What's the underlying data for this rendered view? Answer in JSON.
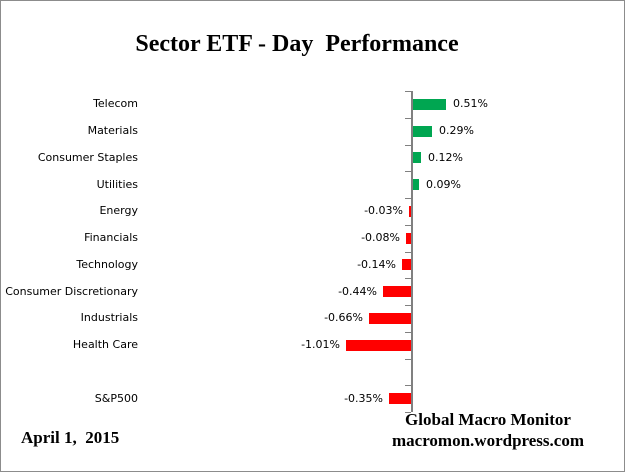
{
  "frame": {
    "background": "#FFFFFF",
    "border_color": "#8C8C8C"
  },
  "title": "Sector ETF - Day  Performance",
  "footer": {
    "date": "April 1,  2015",
    "source_line1": "Global Macro Monitor",
    "source_line2": "macromon.wordpress.com"
  },
  "chart_data": {
    "type": "bar",
    "orientation": "horizontal",
    "title": "Sector ETF - Day  Performance",
    "categories": [
      "Telecom",
      "Materials",
      "Consumer Staples",
      "Utilities",
      "Energy",
      "Financials",
      "Technology",
      "Consumer Discretionary",
      "Industrials",
      "Health Care",
      "",
      "S&P500"
    ],
    "values": [
      0.51,
      0.29,
      0.12,
      0.09,
      -0.03,
      -0.08,
      -0.14,
      -0.44,
      -0.66,
      -1.01,
      null,
      -0.35
    ],
    "value_labels": [
      "0.51%",
      "0.29%",
      "0.12%",
      "0.09%",
      "-0.03%",
      "-0.08%",
      "-0.14%",
      "-0.44%",
      "-0.66%",
      "-1.01%",
      "",
      "-0.35%"
    ],
    "unit": "%",
    "positive_color": "#00A651",
    "negative_color": "#FF0000",
    "axis_color": "#808080",
    "xlim": [
      -1.2,
      1.2
    ],
    "grid": false,
    "legend": false,
    "value_labels_position": "outside-end"
  }
}
